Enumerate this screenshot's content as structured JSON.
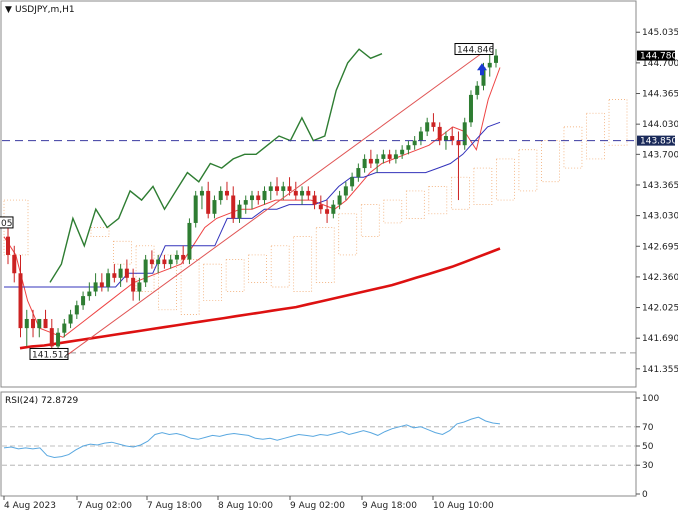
{
  "chart_data": [
    {
      "type": "candlestick",
      "title": "USDJPY,m,H1",
      "symbol_caret": "▼",
      "y_ticks": [
        "145.035",
        "144.700",
        "144.365",
        "144.030",
        "143.700",
        "143.365",
        "143.030",
        "142.695",
        "142.360",
        "142.025",
        "141.690",
        "141.355"
      ],
      "y_tick_values": [
        145.035,
        144.7,
        144.365,
        144.03,
        143.7,
        143.365,
        143.03,
        142.695,
        142.36,
        142.025,
        141.69,
        141.355
      ],
      "ylim": [
        141.2,
        145.3
      ],
      "x_ticks": [
        "4 Aug 2023",
        "7 Aug 02:00",
        "7 Aug 18:00",
        "8 Aug 10:00",
        "9 Aug 02:00",
        "9 Aug 18:00",
        "10 Aug 10:00"
      ],
      "current_price_label": "144.780",
      "current_price": 144.78,
      "line_level_label": "143.850",
      "line_level": 143.85,
      "high_label": "144.846",
      "high": 144.846,
      "low_label": "141.512",
      "low": 141.512,
      "left_partial_label": "05",
      "low_dashed_level": 141.53,
      "series": [
        {
          "role": "candles",
          "color": "#2e7d32",
          "values": [
            [
              142.8,
              142.9,
              142.5,
              142.6
            ],
            [
              142.6,
              142.7,
              142.3,
              142.4
            ],
            [
              142.4,
              142.6,
              141.7,
              141.8
            ],
            [
              141.8,
              142.0,
              141.6,
              141.9
            ],
            [
              141.9,
              142.0,
              141.7,
              141.8
            ],
            [
              141.8,
              141.9,
              141.7,
              141.9
            ],
            [
              141.9,
              142.0,
              141.8,
              141.8
            ],
            [
              141.8,
              141.9,
              141.5,
              141.6
            ],
            [
              141.6,
              141.8,
              141.55,
              141.75
            ],
            [
              141.75,
              141.9,
              141.7,
              141.85
            ],
            [
              141.85,
              142.0,
              141.8,
              141.95
            ],
            [
              141.95,
              142.1,
              141.9,
              142.05
            ],
            [
              142.05,
              142.2,
              142.0,
              142.15
            ],
            [
              142.15,
              142.3,
              142.1,
              142.2
            ],
            [
              142.2,
              142.4,
              142.15,
              142.3
            ],
            [
              142.3,
              142.4,
              142.2,
              142.25
            ],
            [
              142.25,
              142.45,
              142.2,
              142.4
            ],
            [
              142.4,
              142.5,
              142.3,
              142.35
            ],
            [
              142.35,
              142.5,
              142.25,
              142.45
            ],
            [
              142.45,
              142.55,
              142.3,
              142.35
            ],
            [
              142.35,
              142.45,
              142.1,
              142.2
            ],
            [
              142.2,
              142.35,
              142.1,
              142.3
            ],
            [
              142.3,
              142.6,
              142.25,
              142.55
            ],
            [
              142.55,
              142.65,
              142.45,
              142.5
            ],
            [
              142.5,
              142.6,
              142.4,
              142.55
            ],
            [
              142.55,
              142.6,
              142.45,
              142.5
            ],
            [
              142.5,
              142.6,
              142.45,
              142.55
            ],
            [
              142.55,
              142.65,
              142.5,
              142.6
            ],
            [
              142.6,
              142.7,
              142.5,
              142.55
            ],
            [
              142.55,
              143.0,
              142.5,
              142.95
            ],
            [
              142.95,
              143.3,
              142.9,
              143.25
            ],
            [
              143.25,
              143.35,
              143.1,
              143.3
            ],
            [
              143.3,
              143.4,
              143.0,
              143.05
            ],
            [
              143.05,
              143.25,
              143.0,
              143.2
            ],
            [
              143.2,
              143.35,
              143.15,
              143.3
            ],
            [
              143.3,
              143.4,
              143.2,
              143.25
            ],
            [
              143.25,
              143.35,
              142.95,
              143.0
            ],
            [
              143.0,
              143.2,
              142.95,
              143.15
            ],
            [
              143.15,
              143.25,
              143.05,
              143.2
            ],
            [
              143.2,
              143.3,
              143.1,
              143.25
            ],
            [
              143.25,
              143.3,
              143.15,
              143.2
            ],
            [
              143.2,
              143.35,
              143.15,
              143.3
            ],
            [
              143.3,
              143.4,
              143.2,
              143.35
            ],
            [
              143.35,
              143.45,
              143.25,
              143.3
            ],
            [
              143.3,
              143.4,
              143.2,
              143.35
            ],
            [
              143.35,
              143.45,
              143.25,
              143.3
            ],
            [
              143.3,
              143.4,
              143.2,
              143.25
            ],
            [
              143.25,
              143.35,
              143.15,
              143.3
            ],
            [
              143.3,
              143.35,
              143.2,
              143.25
            ],
            [
              143.25,
              143.3,
              143.1,
              143.15
            ],
            [
              143.15,
              143.25,
              143.05,
              143.1
            ],
            [
              143.1,
              143.2,
              142.95,
              143.05
            ],
            [
              143.05,
              143.2,
              143.0,
              143.15
            ],
            [
              143.15,
              143.3,
              143.1,
              143.25
            ],
            [
              143.25,
              143.4,
              143.2,
              143.35
            ],
            [
              143.35,
              143.5,
              143.3,
              143.45
            ],
            [
              143.45,
              143.6,
              143.4,
              143.55
            ],
            [
              143.55,
              143.7,
              143.5,
              143.65
            ],
            [
              143.65,
              143.75,
              143.55,
              143.6
            ],
            [
              143.6,
              143.7,
              143.5,
              143.65
            ],
            [
              143.65,
              143.75,
              143.6,
              143.7
            ],
            [
              143.7,
              143.75,
              143.6,
              143.65
            ],
            [
              143.65,
              143.75,
              143.6,
              143.7
            ],
            [
              143.7,
              143.8,
              143.65,
              143.75
            ],
            [
              143.75,
              143.85,
              143.7,
              143.8
            ],
            [
              143.8,
              143.9,
              143.75,
              143.85
            ],
            [
              143.85,
              144.0,
              143.8,
              143.95
            ],
            [
              143.95,
              144.1,
              143.9,
              144.05
            ],
            [
              144.05,
              144.15,
              143.95,
              144.0
            ],
            [
              144.0,
              144.05,
              143.8,
              143.85
            ],
            [
              143.85,
              143.95,
              143.75,
              143.9
            ],
            [
              143.9,
              144.0,
              143.8,
              143.85
            ],
            [
              143.85,
              143.95,
              143.2,
              143.8
            ],
            [
              143.8,
              144.1,
              143.75,
              144.05
            ],
            [
              144.05,
              144.4,
              144.0,
              144.35
            ],
            [
              144.35,
              144.5,
              144.3,
              144.45
            ],
            [
              144.45,
              144.7,
              144.4,
              144.65
            ],
            [
              144.65,
              144.8,
              144.55,
              144.7
            ],
            [
              144.7,
              144.85,
              144.65,
              144.78
            ]
          ]
        },
        {
          "role": "ma_long",
          "color": "#dd1111",
          "values": [
            141.58,
            141.6,
            141.61,
            141.63,
            141.65,
            141.67,
            141.69,
            141.71,
            141.73,
            141.75,
            141.77,
            141.79,
            141.81,
            141.83,
            141.85,
            141.87,
            141.89,
            141.91,
            141.93,
            141.95,
            141.97,
            141.99,
            142.01,
            142.03,
            142.06,
            142.09,
            142.12,
            142.15,
            142.18,
            142.21,
            142.24,
            142.27,
            142.31,
            142.35,
            142.39,
            142.43,
            142.47,
            142.52,
            142.57,
            142.62,
            142.67
          ]
        },
        {
          "role": "tenkan",
          "color": "#ee4444",
          "values": [
            142.8,
            142.6,
            142.1,
            141.8,
            141.75,
            141.7,
            141.8,
            141.9,
            142.0,
            142.1,
            142.2,
            142.3,
            142.35,
            142.4,
            142.45,
            142.5,
            142.7,
            142.9,
            143.0,
            143.05,
            143.1,
            143.1,
            143.15,
            143.2,
            143.2,
            143.2,
            143.2,
            143.15,
            143.1,
            143.2,
            143.35,
            143.5,
            143.6,
            143.65,
            143.7,
            143.75,
            143.8,
            143.9,
            144.0,
            143.95,
            143.75,
            144.3,
            144.65
          ]
        },
        {
          "role": "kijun",
          "color": "#3333bb",
          "values": [
            142.25,
            142.25,
            142.25,
            142.25,
            142.25,
            142.25,
            142.25,
            142.25,
            142.25,
            142.25,
            142.4,
            142.4,
            142.4,
            142.7,
            142.7,
            142.7,
            142.7,
            142.7,
            143.0,
            143.0,
            143.0,
            143.1,
            143.1,
            143.15,
            143.15,
            143.15,
            143.2,
            143.35,
            143.45,
            143.45,
            143.5,
            143.5,
            143.5,
            143.5,
            143.5,
            143.55,
            143.6,
            143.7,
            143.85,
            144.0,
            144.05
          ]
        },
        {
          "role": "chikou",
          "color": "#2e7d32",
          "values": [
            142.3,
            142.5,
            143.0,
            142.7,
            143.1,
            142.9,
            143.0,
            143.3,
            143.2,
            143.35,
            143.1,
            143.3,
            143.5,
            143.4,
            143.6,
            143.55,
            143.65,
            143.7,
            143.7,
            143.8,
            143.9,
            143.85,
            144.1,
            143.85,
            143.9,
            144.4,
            144.7,
            144.85,
            144.75,
            144.8
          ]
        }
      ]
    },
    {
      "type": "line",
      "title": "RSI(24) 72.8729",
      "y_ticks": [
        "100",
        "70",
        "50",
        "30",
        "0"
      ],
      "y_tick_values": [
        100,
        70,
        50,
        30,
        0
      ],
      "ylim": [
        0,
        100
      ],
      "levels": [
        70,
        50,
        30
      ],
      "series": [
        {
          "role": "rsi",
          "color": "#5aa8e0",
          "values": [
            48,
            49,
            47,
            48,
            47,
            48,
            40,
            38,
            39,
            41,
            46,
            50,
            52,
            51,
            53,
            54,
            52,
            50,
            49,
            51,
            55,
            62,
            64,
            62,
            63,
            61,
            58,
            57,
            59,
            61,
            60,
            62,
            63,
            62,
            61,
            58,
            57,
            58,
            56,
            58,
            60,
            62,
            61,
            60,
            62,
            61,
            63,
            65,
            62,
            64,
            66,
            64,
            61,
            65,
            68,
            70,
            72,
            69,
            70,
            67,
            64,
            62,
            66,
            73,
            75,
            78,
            80,
            76,
            74,
            73
          ]
        }
      ]
    }
  ]
}
